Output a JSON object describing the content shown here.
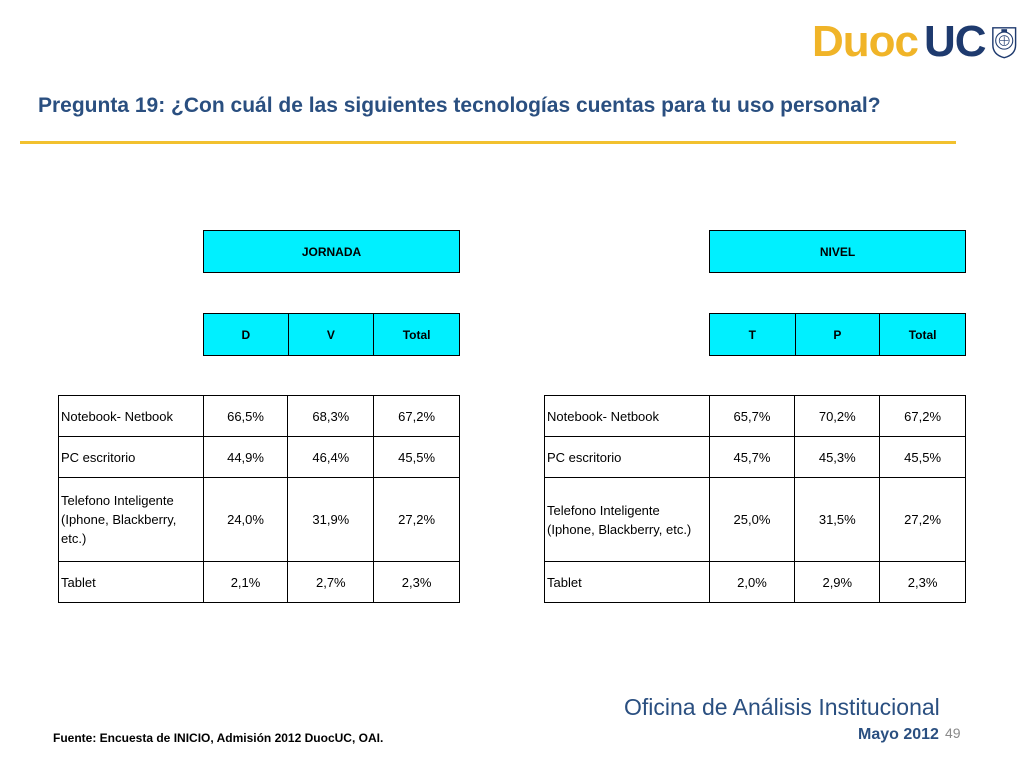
{
  "brand": {
    "logo_part1": "Duoc",
    "logo_part2": "UC",
    "primary_color": "#2a4f80",
    "accent_color": "#f2c12e",
    "header_fill": "#00f0ff"
  },
  "slide": {
    "title": "Pregunta 19: ¿Con cuál de las siguientes tecnologías  cuentas para tu uso personal?",
    "page_number": "49"
  },
  "jornada": {
    "group_label": "JORNADA",
    "columns": [
      "D",
      "V",
      "Total"
    ],
    "rows": [
      {
        "label": "Notebook- Netbook",
        "values": [
          "66,5%",
          "68,3%",
          "67,2%"
        ]
      },
      {
        "label": "PC escritorio",
        "values": [
          "44,9%",
          "46,4%",
          "45,5%"
        ]
      },
      {
        "label": "Telefono Inteligente (Iphone, Blackberry, etc.)",
        "values": [
          "24,0%",
          "31,9%",
          "27,2%"
        ]
      },
      {
        "label": "Tablet",
        "values": [
          "2,1%",
          "2,7%",
          "2,3%"
        ]
      }
    ]
  },
  "nivel": {
    "group_label": "NIVEL",
    "columns": [
      "T",
      "P",
      "Total"
    ],
    "rows": [
      {
        "label": "Notebook- Netbook",
        "values": [
          "65,7%",
          "70,2%",
          "67,2%"
        ]
      },
      {
        "label": "PC escritorio",
        "values": [
          "45,7%",
          "45,3%",
          "45,5%"
        ]
      },
      {
        "label": "Telefono Inteligente (Iphone, Blackberry, etc.)",
        "values": [
          "25,0%",
          "31,5%",
          "27,2%"
        ]
      },
      {
        "label": "Tablet",
        "values": [
          "2,0%",
          "2,9%",
          "2,3%"
        ]
      }
    ]
  },
  "footer": {
    "office": "Oficina de Análisis Institucional",
    "date": "Mayo 2012",
    "source": "Fuente: Encuesta de INICIO, Admisión 2012 DuocUC, OAI."
  }
}
